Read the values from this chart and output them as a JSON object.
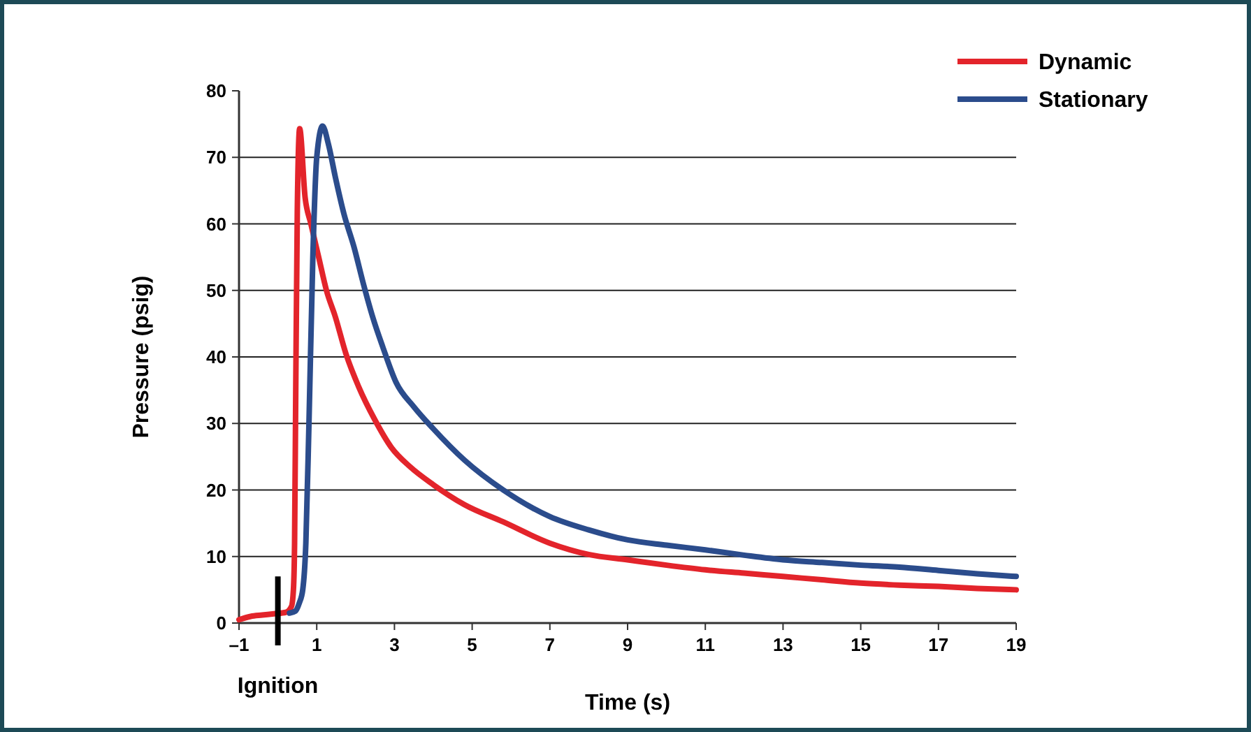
{
  "chart_data": {
    "type": "line",
    "xlabel": "Time (s)",
    "ylabel": "Pressure (psig)",
    "xlim": [
      -1,
      19
    ],
    "xticks": [
      {
        "value": -1,
        "label": "–1"
      },
      1,
      3,
      5,
      7,
      9,
      11,
      13,
      15,
      17,
      19
    ],
    "ylim": [
      0,
      80
    ],
    "yticks": [
      0,
      10,
      20,
      30,
      40,
      50,
      60,
      70,
      80
    ],
    "grid": "y",
    "legend": "top right",
    "line_style": "solid",
    "ref_lines": [
      {
        "axis": "x",
        "value": 0,
        "label": "Ignition",
        "color": "#000000"
      }
    ],
    "series": [
      {
        "name": "Dynamic",
        "color": "#e3242b",
        "x": [
          -1,
          -0.7,
          -0.4,
          -0.1,
          0.2,
          0.35,
          0.4,
          0.43,
          0.46,
          0.5,
          0.56,
          0.7,
          0.85,
          1.05,
          1.25,
          1.48,
          1.75,
          2.08,
          2.5,
          2.92,
          3.4,
          4.0,
          4.8,
          5.8,
          7,
          8,
          9,
          10,
          11,
          12,
          13,
          14,
          15,
          16,
          17,
          18,
          19
        ],
        "values": [
          0.5,
          1,
          1.2,
          1.4,
          1.6,
          2.5,
          5,
          12,
          35,
          62,
          74.3,
          64,
          60,
          55,
          50,
          46,
          40.5,
          35.5,
          30.5,
          26.4,
          23.5,
          20.8,
          17.8,
          15.2,
          12,
          10.3,
          9.5,
          8.7,
          8,
          7.5,
          7,
          6.5,
          6,
          5.7,
          5.5,
          5.2,
          5
        ]
      },
      {
        "name": "Stationary",
        "color": "#2b4c8c",
        "x": [
          0.3,
          0.45,
          0.55,
          0.64,
          0.72,
          0.8,
          0.9,
          1.0,
          1.15,
          1.3,
          1.48,
          1.7,
          1.96,
          2.2,
          2.44,
          2.7,
          3.04,
          3.5,
          4.0,
          4.8,
          5.8,
          7,
          8,
          9,
          10,
          11,
          12,
          13,
          14,
          15,
          16,
          17,
          18,
          19
        ],
        "values": [
          1.5,
          1.8,
          3,
          5,
          12,
          30,
          55,
          70,
          74.7,
          72,
          67,
          61.5,
          56.5,
          51,
          46,
          41.5,
          36.2,
          32.5,
          29.2,
          24.5,
          20,
          16,
          14,
          12.5,
          11.7,
          11,
          10.2,
          9.5,
          9.1,
          8.7,
          8.4,
          7.9,
          7.4,
          7
        ]
      }
    ]
  }
}
